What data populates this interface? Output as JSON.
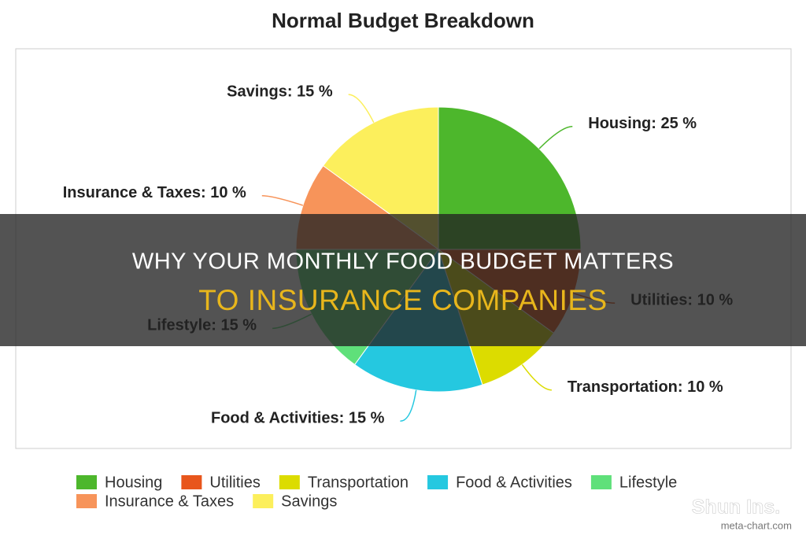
{
  "chart_data": {
    "type": "pie",
    "title": "Normal Budget Breakdown",
    "categories": [
      "Housing",
      "Utilities",
      "Transportation",
      "Food & Activities",
      "Lifestyle",
      "Insurance & Taxes",
      "Savings"
    ],
    "values": [
      25,
      10,
      10,
      15,
      15,
      10,
      15
    ],
    "value_labels": [
      "Housing: 25 %",
      "Utilities: 10 %",
      "Transportation: 10 %",
      "Food & Activities: 15 %",
      "Lifestyle: 15 %",
      "Insurance & Taxes: 10 %",
      "Savings: 15 %"
    ],
    "colors": [
      "#4db72c",
      "#e8561c",
      "#dcdc00",
      "#25c8e0",
      "#5fe07a",
      "#f7945a",
      "#fcef5c"
    ],
    "legend": "bottom"
  },
  "banner": {
    "line1": "WHY YOUR MONTHLY FOOD BUDGET MATTERS",
    "line2": "TO INSURANCE COMPANIES"
  },
  "watermark": "Shun Ins.",
  "source": "meta-chart.com"
}
